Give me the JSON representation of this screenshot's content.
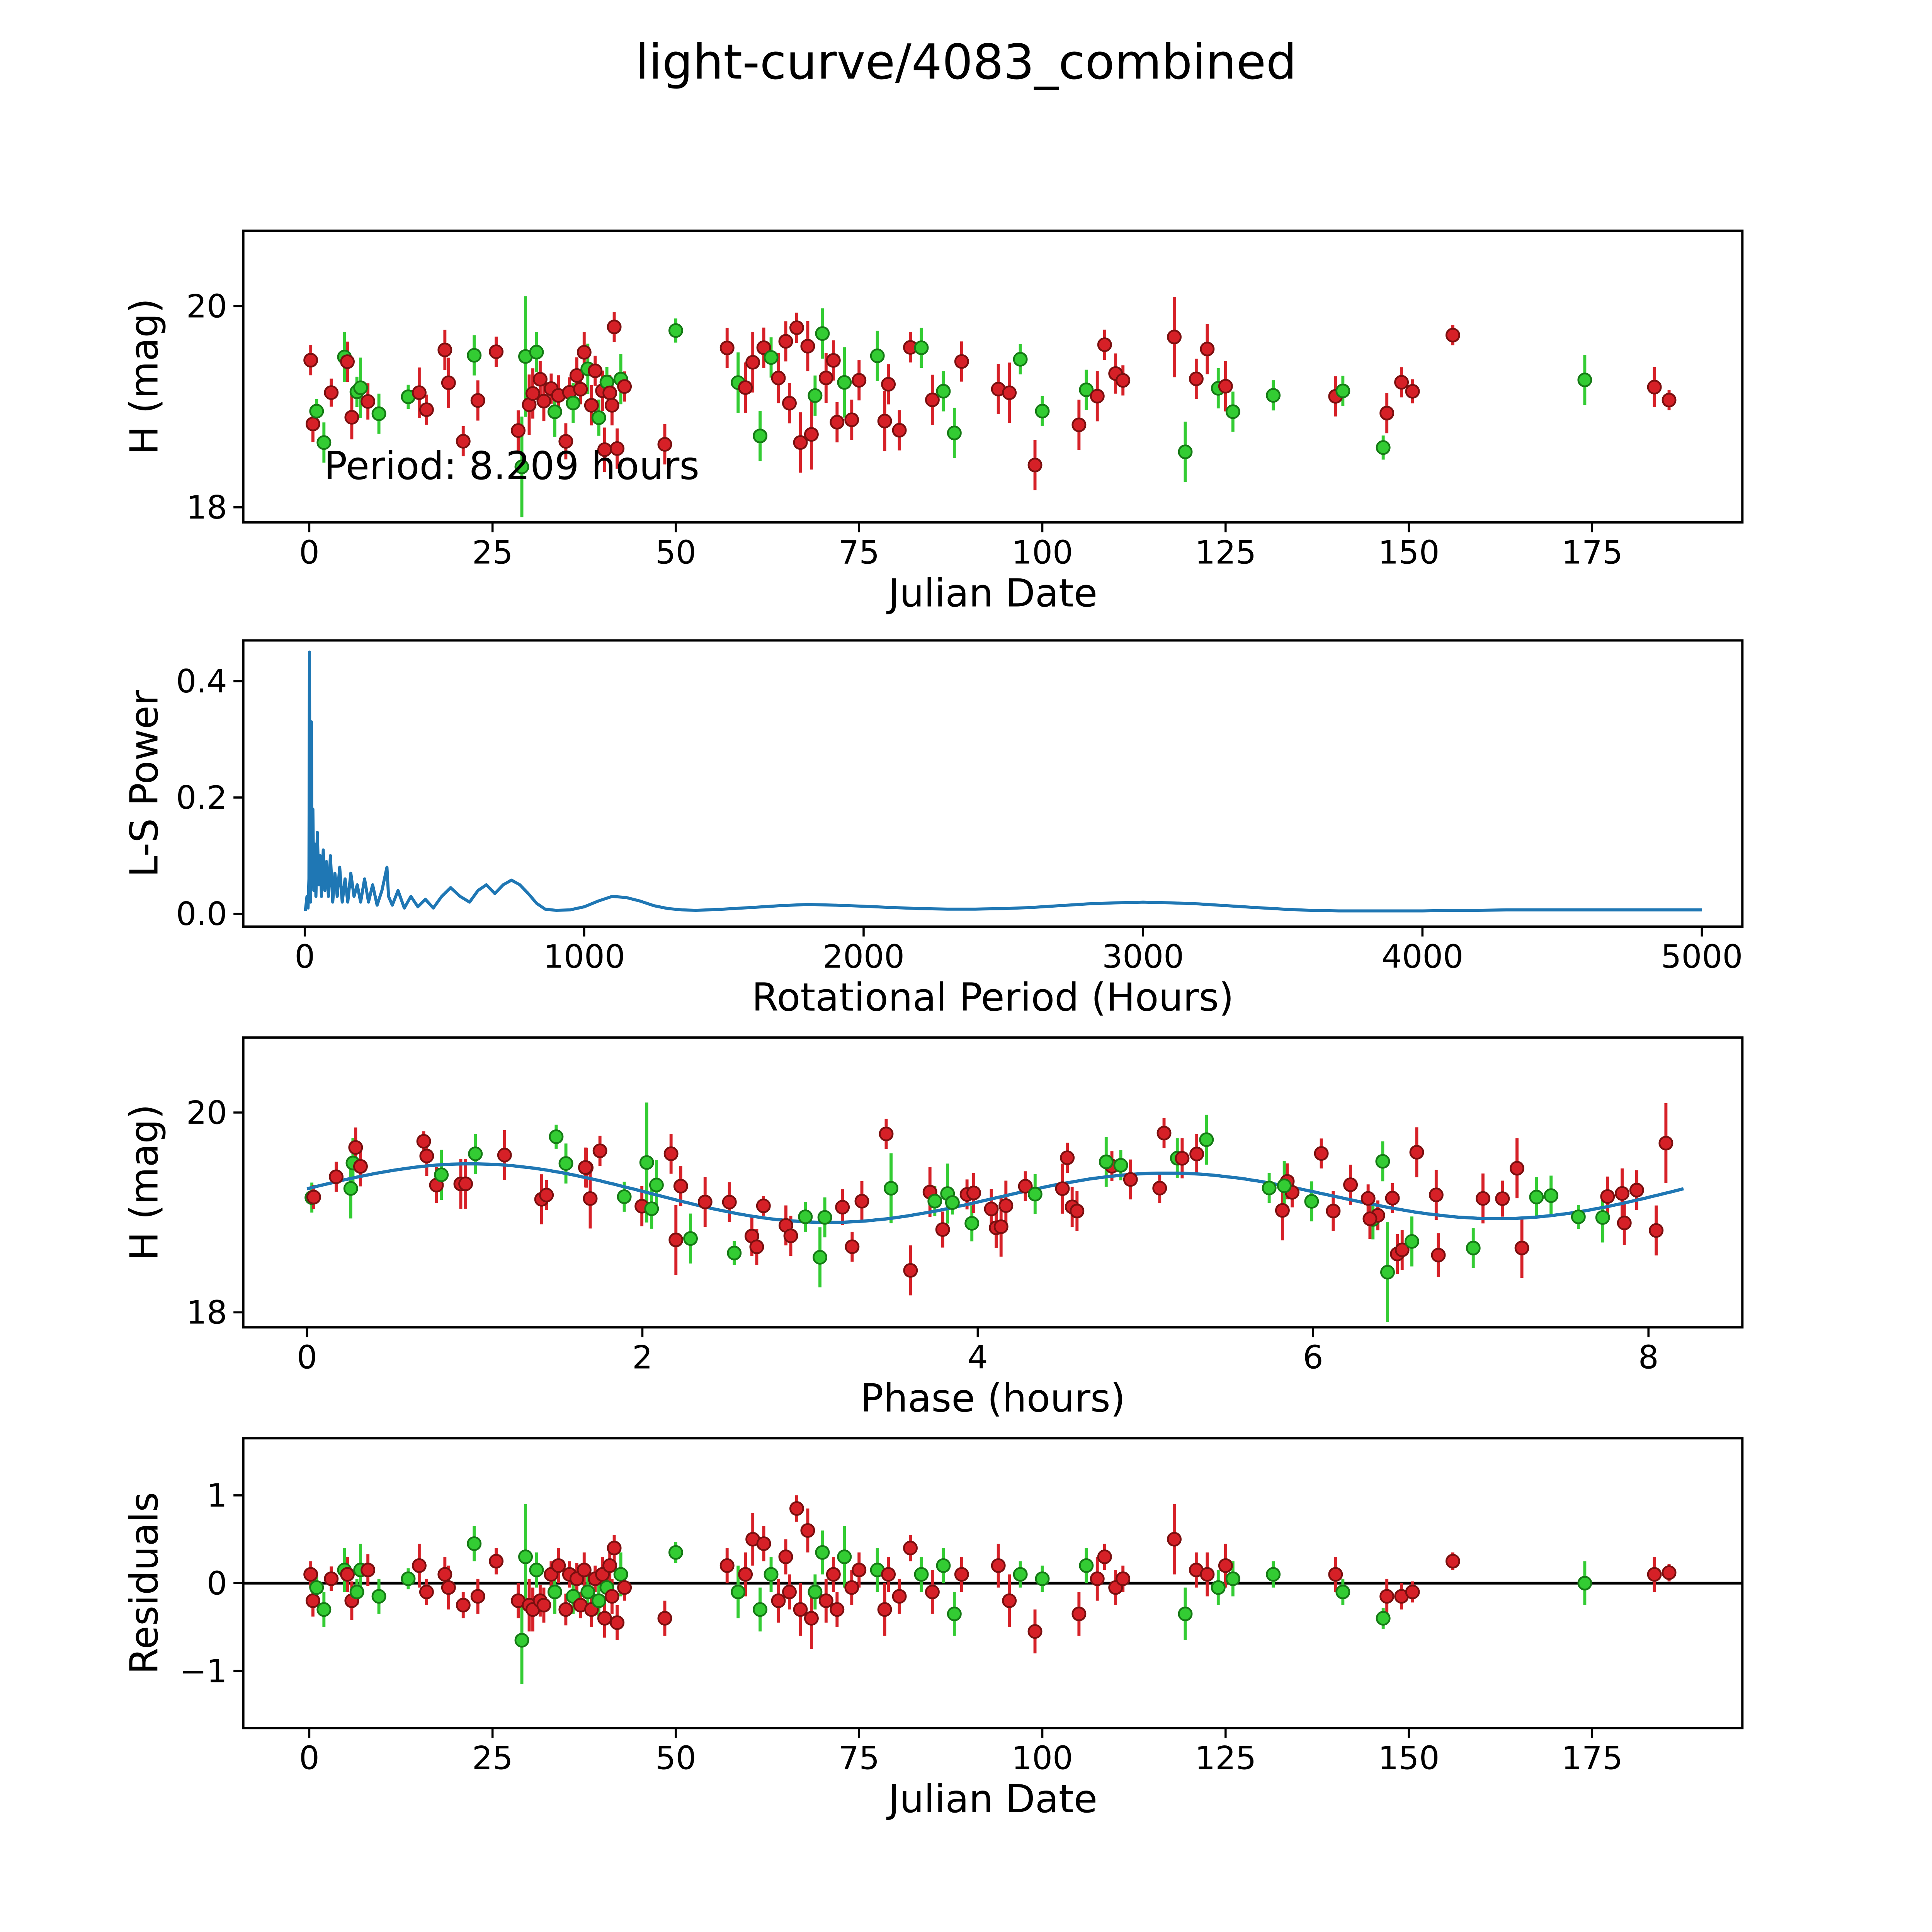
{
  "title": "light-curve/4083_combined",
  "period_hours": 8.209,
  "colors": {
    "red": "#d62027",
    "red_edge": "#7a0f0f",
    "green": "#33cc33",
    "green_edge": "#157a15",
    "blue": "#1f77b4",
    "axis": "#000000",
    "zero_line": "#000000"
  },
  "observations_format": "julian_date_days, residual_mag, error_mag, series (r=red, g=green); magnitude = fit_model(phase)+residual, phase=(jd*24) mod period",
  "observations": [
    [
      0.2,
      0.1,
      0.15,
      "r"
    ],
    [
      0.5,
      -0.2,
      0.18,
      "r"
    ],
    [
      1.0,
      -0.05,
      0.12,
      "g"
    ],
    [
      2.0,
      -0.3,
      0.2,
      "g"
    ],
    [
      3.0,
      0.05,
      0.14,
      "r"
    ],
    [
      4.8,
      0.15,
      0.25,
      "g"
    ],
    [
      5.2,
      0.1,
      0.2,
      "r"
    ],
    [
      5.8,
      -0.2,
      0.22,
      "r"
    ],
    [
      6.5,
      -0.1,
      0.15,
      "g"
    ],
    [
      7.0,
      0.15,
      0.3,
      "g"
    ],
    [
      8.0,
      0.15,
      0.18,
      "r"
    ],
    [
      9.5,
      -0.15,
      0.2,
      "g"
    ],
    [
      13.5,
      0.05,
      0.12,
      "g"
    ],
    [
      15.0,
      0.2,
      0.25,
      "r"
    ],
    [
      16.0,
      -0.1,
      0.15,
      "r"
    ],
    [
      18.5,
      0.1,
      0.2,
      "r"
    ],
    [
      19.0,
      -0.05,
      0.25,
      "r"
    ],
    [
      21.0,
      -0.25,
      0.15,
      "r"
    ],
    [
      22.5,
      0.45,
      0.2,
      "g"
    ],
    [
      23.0,
      -0.15,
      0.2,
      "r"
    ],
    [
      25.5,
      0.25,
      0.15,
      "r"
    ],
    [
      28.5,
      -0.2,
      0.2,
      "r"
    ],
    [
      29.0,
      -0.65,
      0.5,
      "g"
    ],
    [
      29.5,
      0.3,
      0.6,
      "g"
    ],
    [
      30.0,
      -0.25,
      0.3,
      "r"
    ],
    [
      30.5,
      -0.3,
      0.25,
      "r"
    ],
    [
      31.0,
      0.15,
      0.2,
      "g"
    ],
    [
      31.5,
      -0.2,
      0.18,
      "r"
    ],
    [
      32.0,
      -0.25,
      0.2,
      "r"
    ],
    [
      33.0,
      0.1,
      0.15,
      "r"
    ],
    [
      33.5,
      -0.1,
      0.25,
      "g"
    ],
    [
      34.0,
      0.2,
      0.2,
      "r"
    ],
    [
      35.0,
      -0.3,
      0.18,
      "r"
    ],
    [
      35.5,
      0.1,
      0.15,
      "r"
    ],
    [
      36.0,
      -0.15,
      0.2,
      "g"
    ],
    [
      36.5,
      0.05,
      0.18,
      "r"
    ],
    [
      37.0,
      -0.25,
      0.15,
      "r"
    ],
    [
      37.5,
      0.15,
      0.2,
      "r"
    ],
    [
      38.0,
      -0.1,
      0.25,
      "g"
    ],
    [
      38.5,
      -0.3,
      0.2,
      "r"
    ],
    [
      39.0,
      0.05,
      0.15,
      "r"
    ],
    [
      39.5,
      -0.2,
      0.18,
      "g"
    ],
    [
      40.0,
      0.1,
      0.2,
      "r"
    ],
    [
      40.3,
      -0.4,
      0.22,
      "r"
    ],
    [
      40.6,
      -0.05,
      0.15,
      "g"
    ],
    [
      41.0,
      0.2,
      0.18,
      "r"
    ],
    [
      41.3,
      -0.15,
      0.2,
      "r"
    ],
    [
      41.6,
      0.4,
      0.15,
      "r"
    ],
    [
      42.0,
      -0.45,
      0.2,
      "r"
    ],
    [
      42.5,
      0.1,
      0.25,
      "g"
    ],
    [
      43.0,
      -0.05,
      0.15,
      "r"
    ],
    [
      48.5,
      -0.4,
      0.2,
      "r"
    ],
    [
      50.0,
      0.35,
      0.12,
      "g"
    ],
    [
      57.0,
      0.2,
      0.2,
      "r"
    ],
    [
      58.5,
      -0.1,
      0.3,
      "g"
    ],
    [
      59.5,
      0.1,
      0.25,
      "r"
    ],
    [
      60.5,
      0.5,
      0.3,
      "r"
    ],
    [
      61.5,
      -0.3,
      0.25,
      "g"
    ],
    [
      62.0,
      0.45,
      0.2,
      "r"
    ],
    [
      63.0,
      0.1,
      0.2,
      "g"
    ],
    [
      64.0,
      -0.2,
      0.25,
      "r"
    ],
    [
      65.0,
      0.3,
      0.2,
      "r"
    ],
    [
      65.5,
      -0.1,
      0.2,
      "r"
    ],
    [
      66.5,
      0.85,
      0.15,
      "r"
    ],
    [
      67.0,
      -0.3,
      0.3,
      "r"
    ],
    [
      68.0,
      0.6,
      0.25,
      "r"
    ],
    [
      68.5,
      -0.4,
      0.35,
      "r"
    ],
    [
      69.0,
      -0.1,
      0.2,
      "g"
    ],
    [
      70.0,
      0.35,
      0.25,
      "g"
    ],
    [
      70.5,
      -0.2,
      0.25,
      "r"
    ],
    [
      71.5,
      0.1,
      0.2,
      "r"
    ],
    [
      72.0,
      -0.3,
      0.2,
      "r"
    ],
    [
      73.0,
      0.3,
      0.35,
      "g"
    ],
    [
      74.0,
      -0.05,
      0.2,
      "r"
    ],
    [
      75.0,
      0.15,
      0.2,
      "r"
    ],
    [
      77.5,
      0.15,
      0.25,
      "g"
    ],
    [
      78.5,
      -0.3,
      0.3,
      "r"
    ],
    [
      79.0,
      0.1,
      0.2,
      "r"
    ],
    [
      80.5,
      -0.15,
      0.2,
      "r"
    ],
    [
      82.0,
      0.4,
      0.15,
      "r"
    ],
    [
      83.5,
      0.1,
      0.2,
      "g"
    ],
    [
      85.0,
      -0.1,
      0.25,
      "r"
    ],
    [
      86.5,
      0.2,
      0.2,
      "g"
    ],
    [
      88.0,
      -0.35,
      0.25,
      "g"
    ],
    [
      89.0,
      0.1,
      0.2,
      "r"
    ],
    [
      94.0,
      0.2,
      0.25,
      "r"
    ],
    [
      95.5,
      -0.2,
      0.3,
      "r"
    ],
    [
      97.0,
      0.1,
      0.15,
      "g"
    ],
    [
      99.0,
      -0.55,
      0.25,
      "r"
    ],
    [
      100.0,
      0.05,
      0.15,
      "g"
    ],
    [
      105.0,
      -0.35,
      0.25,
      "r"
    ],
    [
      106.0,
      0.2,
      0.2,
      "g"
    ],
    [
      107.5,
      0.05,
      0.25,
      "r"
    ],
    [
      108.5,
      0.3,
      0.15,
      "r"
    ],
    [
      110.0,
      -0.05,
      0.2,
      "r"
    ],
    [
      111.0,
      0.05,
      0.15,
      "r"
    ],
    [
      118.0,
      0.5,
      0.4,
      "r"
    ],
    [
      119.5,
      -0.35,
      0.3,
      "g"
    ],
    [
      121.0,
      0.15,
      0.2,
      "r"
    ],
    [
      122.5,
      0.1,
      0.25,
      "r"
    ],
    [
      124.0,
      -0.05,
      0.2,
      "g"
    ],
    [
      125.0,
      0.2,
      0.25,
      "r"
    ],
    [
      126.0,
      0.05,
      0.2,
      "g"
    ],
    [
      131.5,
      0.1,
      0.15,
      "g"
    ],
    [
      140.0,
      0.1,
      0.2,
      "r"
    ],
    [
      141.0,
      -0.1,
      0.15,
      "g"
    ],
    [
      146.5,
      -0.4,
      0.12,
      "g"
    ],
    [
      147.0,
      -0.15,
      0.2,
      "r"
    ],
    [
      149.0,
      -0.15,
      0.15,
      "r"
    ],
    [
      150.5,
      -0.1,
      0.12,
      "r"
    ],
    [
      156.0,
      0.25,
      0.1,
      "r"
    ],
    [
      174.0,
      0.0,
      0.25,
      "g"
    ],
    [
      183.5,
      0.1,
      0.2,
      "r"
    ],
    [
      185.5,
      0.12,
      0.1,
      "r"
    ]
  ],
  "chart_data": [
    {
      "type": "scatter",
      "panel": "magnitude_vs_time",
      "title": "",
      "xlabel": "Julian Date",
      "ylabel": "H (mag)",
      "annotation": "Period: 8.209 hours",
      "annotation_xy": [
        2,
        18.28
      ],
      "xlim": [
        -9,
        195.5
      ],
      "ylim": [
        17.85,
        20.75
      ],
      "xticks": [
        0,
        25,
        50,
        75,
        100,
        125,
        150,
        175
      ],
      "yticks": [
        18,
        20
      ],
      "xtick_dec": null,
      "ytick_dec": null,
      "grid": false,
      "legend": "none"
    },
    {
      "type": "line",
      "panel": "periodogram",
      "xlabel": "Rotational Period (Hours)",
      "ylabel": "L-S Power",
      "xlim": [
        -220,
        5145
      ],
      "ylim": [
        -0.022,
        0.47
      ],
      "xticks": [
        0,
        1000,
        2000,
        3000,
        4000,
        5000
      ],
      "yticks": [
        0.0,
        0.2,
        0.4
      ],
      "xtick_dec": null,
      "ytick_dec": 1,
      "peak": {
        "period_hours": 8.209,
        "power": 0.45
      },
      "points": [
        [
          2,
          0.005
        ],
        [
          8,
          0.03
        ],
        [
          12,
          0.01
        ],
        [
          15,
          0.06
        ],
        [
          17,
          0.45
        ],
        [
          19,
          0.07
        ],
        [
          21,
          0.02
        ],
        [
          24,
          0.33
        ],
        [
          26,
          0.05
        ],
        [
          29,
          0.18
        ],
        [
          32,
          0.04
        ],
        [
          36,
          0.12
        ],
        [
          40,
          0.03
        ],
        [
          45,
          0.14
        ],
        [
          50,
          0.05
        ],
        [
          55,
          0.1
        ],
        [
          60,
          0.03
        ],
        [
          66,
          0.11
        ],
        [
          72,
          0.04
        ],
        [
          78,
          0.09
        ],
        [
          85,
          0.03
        ],
        [
          92,
          0.1
        ],
        [
          100,
          0.02
        ],
        [
          108,
          0.07
        ],
        [
          116,
          0.03
        ],
        [
          125,
          0.08
        ],
        [
          134,
          0.02
        ],
        [
          144,
          0.06
        ],
        [
          154,
          0.02
        ],
        [
          165,
          0.07
        ],
        [
          176,
          0.03
        ],
        [
          188,
          0.05
        ],
        [
          200,
          0.02
        ],
        [
          214,
          0.06
        ],
        [
          228,
          0.02
        ],
        [
          243,
          0.05
        ],
        [
          259,
          0.015
        ],
        [
          276,
          0.04
        ],
        [
          294,
          0.08
        ],
        [
          300,
          0.03
        ],
        [
          313,
          0.015
        ],
        [
          334,
          0.04
        ],
        [
          356,
          0.01
        ],
        [
          380,
          0.03
        ],
        [
          405,
          0.012
        ],
        [
          432,
          0.025
        ],
        [
          460,
          0.01
        ],
        [
          490,
          0.03
        ],
        [
          522,
          0.045
        ],
        [
          556,
          0.03
        ],
        [
          590,
          0.02
        ],
        [
          620,
          0.04
        ],
        [
          650,
          0.05
        ],
        [
          680,
          0.035
        ],
        [
          710,
          0.05
        ],
        [
          740,
          0.058
        ],
        [
          770,
          0.05
        ],
        [
          800,
          0.035
        ],
        [
          830,
          0.018
        ],
        [
          860,
          0.008
        ],
        [
          900,
          0.006
        ],
        [
          950,
          0.007
        ],
        [
          1000,
          0.012
        ],
        [
          1050,
          0.022
        ],
        [
          1100,
          0.03
        ],
        [
          1150,
          0.028
        ],
        [
          1200,
          0.022
        ],
        [
          1250,
          0.014
        ],
        [
          1300,
          0.009
        ],
        [
          1350,
          0.007
        ],
        [
          1400,
          0.006
        ],
        [
          1500,
          0.008
        ],
        [
          1600,
          0.011
        ],
        [
          1700,
          0.014
        ],
        [
          1800,
          0.016
        ],
        [
          1900,
          0.015
        ],
        [
          2000,
          0.013
        ],
        [
          2100,
          0.011
        ],
        [
          2200,
          0.009
        ],
        [
          2300,
          0.008
        ],
        [
          2400,
          0.008
        ],
        [
          2500,
          0.009
        ],
        [
          2600,
          0.011
        ],
        [
          2700,
          0.014
        ],
        [
          2800,
          0.017
        ],
        [
          2900,
          0.019
        ],
        [
          3000,
          0.02
        ],
        [
          3100,
          0.019
        ],
        [
          3200,
          0.017
        ],
        [
          3300,
          0.014
        ],
        [
          3400,
          0.011
        ],
        [
          3500,
          0.008
        ],
        [
          3600,
          0.006
        ],
        [
          3700,
          0.005
        ],
        [
          3800,
          0.005
        ],
        [
          3900,
          0.005
        ],
        [
          4000,
          0.005
        ],
        [
          4100,
          0.006
        ],
        [
          4200,
          0.006
        ],
        [
          4300,
          0.007
        ],
        [
          4400,
          0.007
        ],
        [
          4500,
          0.007
        ],
        [
          4600,
          0.007
        ],
        [
          4700,
          0.007
        ],
        [
          4800,
          0.007
        ],
        [
          4900,
          0.007
        ],
        [
          5000,
          0.007
        ]
      ]
    },
    {
      "type": "scatter",
      "panel": "phased_light_curve",
      "xlabel": "Phase (hours)",
      "ylabel": "H (mag)",
      "xlim": [
        -0.38,
        8.56
      ],
      "ylim": [
        17.85,
        20.75
      ],
      "xticks": [
        0,
        2,
        4,
        6,
        8
      ],
      "yticks": [
        18,
        20
      ],
      "xtick_dec": null,
      "ytick_dec": null,
      "fit": {
        "mean": 19.18,
        "a1": 0.05,
        "t1": 0.5,
        "a2": 0.26,
        "t2": 1.0,
        "period": 8.209,
        "shape": "double-peaked sinusoid"
      }
    },
    {
      "type": "scatter",
      "panel": "residuals_vs_time",
      "xlabel": "Julian Date",
      "ylabel": "Residuals",
      "xlim": [
        -9,
        195.5
      ],
      "ylim": [
        -1.65,
        1.65
      ],
      "xticks": [
        0,
        25,
        50,
        75,
        100,
        125,
        150,
        175
      ],
      "yticks": [
        -1,
        0,
        1
      ],
      "xtick_dec": null,
      "ytick_dec": null,
      "zero_line": 0
    }
  ]
}
